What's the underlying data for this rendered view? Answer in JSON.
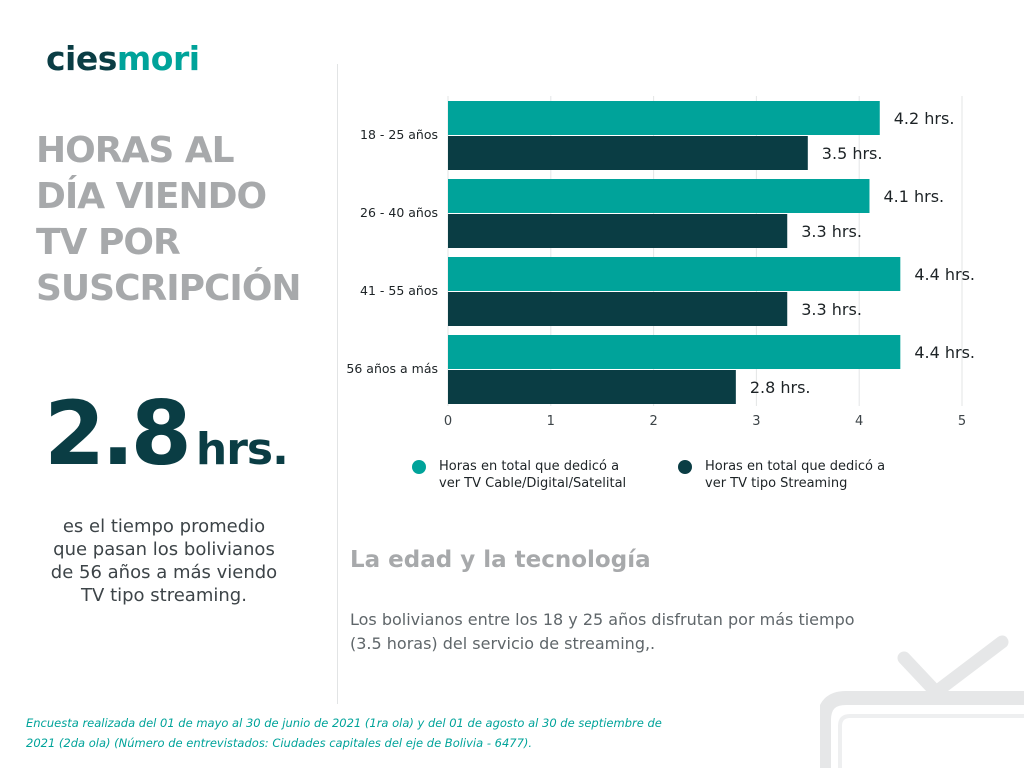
{
  "brand": {
    "part1": "cies",
    "part2": "mori"
  },
  "title_lines": [
    "HORAS AL",
    "DÍA VIENDO",
    "TV POR",
    "SUSCRIPCIÓN"
  ],
  "highlight": {
    "number": "2.8",
    "unit": "hrs."
  },
  "description_lines": [
    "es el tiempo promedio",
    "que pasan los bolivianos",
    "de 56 años a más viendo",
    "TV tipo streaming."
  ],
  "subheading": "La edad y la tecnología",
  "body_lines": [
    "Los bolivianos entre los 18 y 25 años disfrutan por más tiempo",
    "(3.5 horas) del servicio de streaming,."
  ],
  "footnote_lines": [
    "Encuesta realizada del  01 de mayo al 30 de junio de 2021 (1ra ola) y del 01 de agosto al 30 de  septiembre de",
    "2021 (2da ola) (Número de entrevistados: Ciudades capitales del eje de Bolivia - 6477)."
  ],
  "colors": {
    "teal": "#00a39a",
    "dark": "#0a3d44",
    "grey_title": "#a7a9ab"
  },
  "chart_data": {
    "type": "bar",
    "orientation": "horizontal",
    "categories": [
      "18 - 25 años",
      "26 - 40 años",
      "41 - 55 años",
      "56 años a más"
    ],
    "series": [
      {
        "name": "Horas en total que dedicó a\nver TV Cable/Digital/Satelital",
        "color": "#00a39a",
        "values": [
          4.2,
          4.1,
          4.4,
          4.4
        ],
        "labels": [
          "4.2 hrs.",
          "4.1 hrs.",
          "4.4 hrs.",
          "4.4 hrs."
        ]
      },
      {
        "name": "Horas en total que dedicó a\nver TV tipo Streaming",
        "color": "#0a3d44",
        "values": [
          3.5,
          3.3,
          3.3,
          2.8
        ],
        "labels": [
          "3.5 hrs.",
          "3.3 hrs.",
          "3.3 hrs.",
          "2.8 hrs."
        ]
      }
    ],
    "xticks": [
      "0",
      "1",
      "2",
      "3",
      "4",
      "5"
    ],
    "xlim": [
      0,
      5
    ],
    "grid": true,
    "legend_position": "bottom"
  }
}
